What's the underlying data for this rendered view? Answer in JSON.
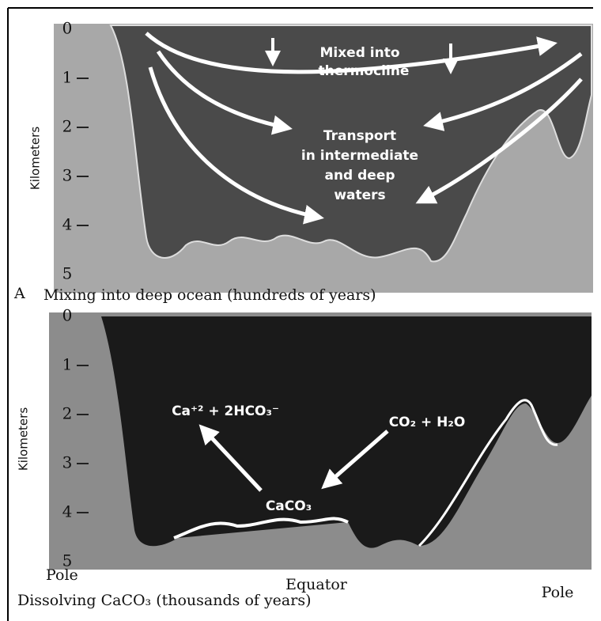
{
  "panel_a": {
    "label": "A",
    "axis_label": "Kilometers",
    "ticks": [
      "0",
      "1",
      "2",
      "3",
      "4",
      "5"
    ],
    "annotations": [
      "Mixed into",
      "thermocline",
      "Transport",
      "in intermediate",
      "and deep",
      "waters"
    ],
    "caption": "Mixing into deep ocean (hundreds of years)"
  },
  "panel_b": {
    "axis_label": "Kilometers",
    "ticks": [
      "0",
      "1",
      "2",
      "3",
      "4",
      "5"
    ],
    "products": "Ca⁺² + 2HCO₃⁻",
    "reactants": "CO₂ + H₂O",
    "sediment": "CaCO₃",
    "x_labels": [
      "Pole",
      "Equator",
      "Pole"
    ],
    "caption": "Dissolving CaCO₃ (thousands of years)"
  }
}
